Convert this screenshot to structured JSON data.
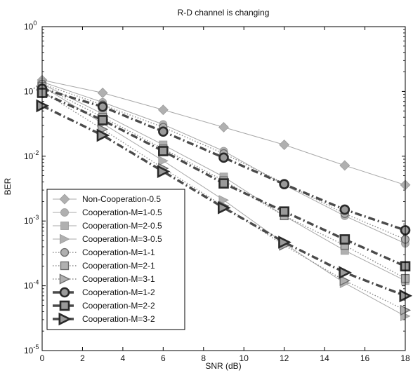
{
  "chart_data": {
    "type": "line",
    "title": "R-D channel is changing",
    "xlabel": "SNR (dB)",
    "ylabel": "BER",
    "xlim": [
      0,
      18
    ],
    "ylim": [
      1e-05,
      1
    ],
    "yscale": "log",
    "grid": false,
    "legend_position": "bottom-left",
    "x": [
      0,
      3,
      6,
      9,
      12,
      15,
      18
    ],
    "x_ticks": [
      {
        "value": 0,
        "label": "0"
      },
      {
        "value": 2,
        "label": "2"
      },
      {
        "value": 4,
        "label": "4"
      },
      {
        "value": 6,
        "label": "6"
      },
      {
        "value": 8,
        "label": "8"
      },
      {
        "value": 10,
        "label": "10"
      },
      {
        "value": 12,
        "label": "12"
      },
      {
        "value": 14,
        "label": "14"
      },
      {
        "value": 16,
        "label": "16"
      },
      {
        "value": 18,
        "label": "18"
      }
    ],
    "y_ticks": [
      {
        "value": 1,
        "base": "10",
        "exp": "0"
      },
      {
        "value": 0.1,
        "base": "10",
        "exp": "-1"
      },
      {
        "value": 0.01,
        "base": "10",
        "exp": "-2"
      },
      {
        "value": 0.001,
        "base": "10",
        "exp": "-3"
      },
      {
        "value": 0.0001,
        "base": "10",
        "exp": "-4"
      },
      {
        "value": 1e-05,
        "base": "10",
        "exp": "-5"
      }
    ],
    "series": [
      {
        "name": "Non-Cooperation-0.5",
        "marker": "diamond",
        "line": "solid",
        "weight": "thin",
        "color": "#a8a8a8",
        "values": [
          0.15,
          0.095,
          0.052,
          0.028,
          0.015,
          0.0072,
          0.0036
        ]
      },
      {
        "name": "Cooperation-M=1-0.5",
        "marker": "circle",
        "line": "solid",
        "weight": "thin",
        "color": "#a8a8a8",
        "values": [
          0.14,
          0.068,
          0.031,
          0.012,
          0.0036,
          0.0012,
          0.00045
        ]
      },
      {
        "name": "Cooperation-M=2-0.5",
        "marker": "square",
        "line": "solid",
        "weight": "thin",
        "color": "#a8a8a8",
        "values": [
          0.13,
          0.045,
          0.015,
          0.0048,
          0.0012,
          0.00035,
          0.00012
        ]
      },
      {
        "name": "Cooperation-M=3-0.5",
        "marker": "triangle-right",
        "line": "solid",
        "weight": "thin",
        "color": "#a8a8a8",
        "values": [
          0.12,
          0.032,
          0.0085,
          0.0021,
          0.00045,
          0.00011,
          3.4e-05
        ]
      },
      {
        "name": "Cooperation-M=1-1",
        "marker": "circle",
        "line": "dotted",
        "weight": "medium",
        "color": "#8a8a8a",
        "values": [
          0.13,
          0.062,
          0.028,
          0.011,
          0.0038,
          0.0013,
          0.00052
        ]
      },
      {
        "name": "Cooperation-M=2-1",
        "marker": "square",
        "line": "dotted",
        "weight": "medium",
        "color": "#8a8a8a",
        "values": [
          0.12,
          0.04,
          0.013,
          0.0042,
          0.0012,
          0.00042,
          0.00013
        ]
      },
      {
        "name": "Cooperation-M=3-1",
        "marker": "triangle-right",
        "line": "dotted",
        "weight": "medium",
        "color": "#8a8a8a",
        "values": [
          0.1,
          0.026,
          0.0065,
          0.0017,
          0.00042,
          0.00012,
          4.2e-05
        ]
      },
      {
        "name": "Cooperation-M=1-2",
        "marker": "circle",
        "line": "dashdot",
        "weight": "thick",
        "color": "#4a4a4a",
        "values": [
          0.11,
          0.058,
          0.024,
          0.0095,
          0.0037,
          0.0015,
          0.00072
        ]
      },
      {
        "name": "Cooperation-M=2-2",
        "marker": "square",
        "line": "dashdot",
        "weight": "thick",
        "color": "#4a4a4a",
        "values": [
          0.095,
          0.036,
          0.012,
          0.0038,
          0.0014,
          0.00052,
          0.0002
        ]
      },
      {
        "name": "Cooperation-M=3-2",
        "marker": "triangle-right",
        "line": "dashdot",
        "weight": "thick",
        "color": "#4a4a4a",
        "values": [
          0.06,
          0.021,
          0.0058,
          0.0016,
          0.00047,
          0.00016,
          7e-05
        ]
      }
    ]
  }
}
